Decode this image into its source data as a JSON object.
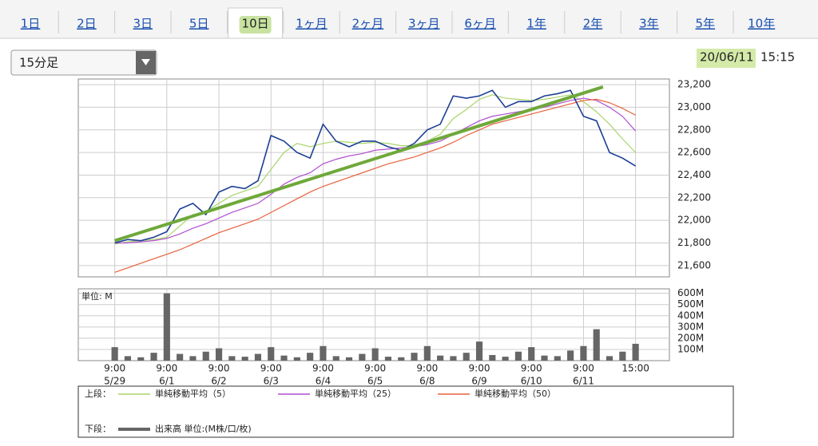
{
  "tabs": [
    "1日",
    "2日",
    "3日",
    "5日",
    "10日",
    "1ヶ月",
    "2ヶ月",
    "3ヶ月",
    "6ヶ月",
    "1年",
    "2年",
    "3年",
    "5年",
    "10年"
  ],
  "selected_tab": "10日",
  "dropdown": "15分足",
  "timestamp": {
    "date": "20/06/11",
    "time": "15:15"
  },
  "chart_data": [
    {
      "type": "line",
      "x": [
        0,
        1,
        2,
        3,
        4,
        5,
        6,
        7,
        8,
        9,
        10,
        11,
        12,
        13,
        14,
        15,
        16,
        17,
        18,
        19,
        20,
        21,
        22,
        23,
        24,
        25,
        26,
        27,
        28,
        29,
        30,
        31,
        32,
        33,
        34,
        35,
        36,
        37,
        38,
        39,
        40
      ],
      "xlim": [
        -2.8,
        42.6
      ],
      "xticks": [
        {
          "value": 0,
          "label": "9:00"
        },
        {
          "value": 4,
          "label": "9:00"
        },
        {
          "value": 8,
          "label": "9:00"
        },
        {
          "value": 12,
          "label": "9:00"
        },
        {
          "value": 16,
          "label": "9:00"
        },
        {
          "value": 20,
          "label": "9:00"
        },
        {
          "value": 24,
          "label": "9:00"
        },
        {
          "value": 28,
          "label": "9:00"
        },
        {
          "value": 32,
          "label": "9:00"
        },
        {
          "value": 36,
          "label": "9:00"
        },
        {
          "value": 40,
          "label": "15:00"
        }
      ],
      "x_tick_dates": [
        "5/29",
        "6/1",
        "6/2",
        "6/3",
        "6/4",
        "6/5",
        "6/8",
        "6/9",
        "6/10",
        "6/11"
      ],
      "ylim": [
        21500,
        23250
      ],
      "yticks": [
        {
          "value": 21600,
          "label": "21,600"
        },
        {
          "value": 21800,
          "label": "21,800"
        },
        {
          "value": 22000,
          "label": "22,000"
        },
        {
          "value": 22200,
          "label": "22,200"
        },
        {
          "value": 22400,
          "label": "22,400"
        },
        {
          "value": 22600,
          "label": "22,600"
        },
        {
          "value": 22800,
          "label": "22,800"
        },
        {
          "value": 23000,
          "label": "23,000"
        },
        {
          "value": 23200,
          "label": "23,200"
        }
      ],
      "grid": true,
      "price": {
        "color": "#1c3f94",
        "values": [
          21800,
          21830,
          21820,
          21850,
          21900,
          22100,
          22150,
          22050,
          22250,
          22300,
          22280,
          22350,
          22750,
          22700,
          22600,
          22550,
          22850,
          22700,
          22650,
          22700,
          22700,
          22650,
          22620,
          22680,
          22800,
          22850,
          23100,
          23080,
          23100,
          23150,
          23000,
          23050,
          23050,
          23100,
          23120,
          23150,
          22920,
          22880,
          22600,
          22550,
          22480
        ]
      },
      "series": [
        {
          "name": "単純移動平均（5）",
          "color": "#a9d46a",
          "values": [
            21790,
            21810,
            21820,
            21830,
            21850,
            21950,
            22050,
            22080,
            22150,
            22220,
            22260,
            22300,
            22450,
            22600,
            22680,
            22650,
            22680,
            22700,
            22690,
            22680,
            22690,
            22680,
            22660,
            22660,
            22700,
            22760,
            22900,
            22980,
            23070,
            23110,
            23080,
            23070,
            23060,
            23070,
            23090,
            23110,
            23050,
            22960,
            22850,
            22720,
            22600
          ]
        },
        {
          "name": "単純移動平均（25）",
          "color": "#b04fd0",
          "values": [
            21800,
            21800,
            21810,
            21820,
            21840,
            21880,
            21930,
            21970,
            22020,
            22070,
            22110,
            22150,
            22230,
            22320,
            22380,
            22420,
            22500,
            22540,
            22570,
            22590,
            22620,
            22630,
            22640,
            22650,
            22670,
            22700,
            22760,
            22820,
            22880,
            22920,
            22940,
            22960,
            22980,
            23000,
            23030,
            23060,
            23080,
            23060,
            23000,
            22920,
            22790
          ]
        },
        {
          "name": "単純移動平均（50）",
          "color": "#e8603c",
          "values": [
            21540,
            21580,
            21620,
            21660,
            21700,
            21740,
            21790,
            21840,
            21890,
            21930,
            21970,
            22010,
            22070,
            22130,
            22190,
            22250,
            22300,
            22340,
            22380,
            22420,
            22460,
            22500,
            22530,
            22560,
            22600,
            22640,
            22690,
            22750,
            22800,
            22850,
            22880,
            22910,
            22940,
            22970,
            23000,
            23030,
            23060,
            23070,
            23040,
            22990,
            22930
          ]
        }
      ],
      "trend_line": {
        "color": "#6fa83a",
        "x": [
          0,
          37.5
        ],
        "values": [
          21820,
          23180
        ]
      }
    },
    {
      "type": "bar",
      "unit_label": "単位: M",
      "x": [
        0,
        1,
        2,
        3,
        4,
        5,
        6,
        7,
        8,
        9,
        10,
        11,
        12,
        13,
        14,
        15,
        16,
        17,
        18,
        19,
        20,
        21,
        22,
        23,
        24,
        25,
        26,
        27,
        28,
        29,
        30,
        31,
        32,
        33,
        34,
        35,
        36,
        37,
        38,
        39,
        40
      ],
      "xlim": [
        -2.8,
        42.6
      ],
      "ylim": [
        0,
        640
      ],
      "yticks": [
        {
          "value": 100,
          "label": "100M"
        },
        {
          "value": 200,
          "label": "200M"
        },
        {
          "value": 300,
          "label": "300M"
        },
        {
          "value": 400,
          "label": "400M"
        },
        {
          "value": 500,
          "label": "500M"
        },
        {
          "value": 600,
          "label": "600M"
        }
      ],
      "color": "#666666",
      "values": [
        120,
        40,
        30,
        70,
        600,
        60,
        40,
        80,
        110,
        40,
        35,
        60,
        120,
        45,
        30,
        70,
        130,
        40,
        30,
        60,
        110,
        35,
        30,
        70,
        130,
        45,
        40,
        70,
        170,
        50,
        35,
        80,
        120,
        45,
        40,
        90,
        130,
        280,
        40,
        80,
        150
      ]
    }
  ],
  "legend": {
    "upper_label": "上段：",
    "lower_label": "下段：",
    "volume_label": "出来高 単位:(M株/口/枚)"
  }
}
